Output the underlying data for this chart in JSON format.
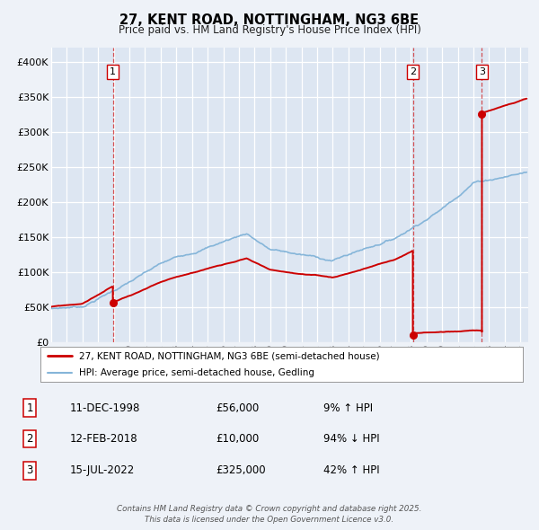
{
  "title": "27, KENT ROAD, NOTTINGHAM, NG3 6BE",
  "subtitle": "Price paid vs. HM Land Registry's House Price Index (HPI)",
  "background_color": "#eef2f8",
  "plot_bg_color": "#dde6f2",
  "grid_color": "#ffffff",
  "red_color": "#cc0000",
  "blue_color": "#85b5d9",
  "ylim": [
    0,
    420000
  ],
  "yticks": [
    0,
    50000,
    100000,
    150000,
    200000,
    250000,
    300000,
    350000,
    400000
  ],
  "ytick_labels": [
    "£0",
    "£50K",
    "£100K",
    "£150K",
    "£200K",
    "£250K",
    "£300K",
    "£350K",
    "£400K"
  ],
  "sale_dates": [
    1998.94,
    2018.12,
    2022.54
  ],
  "sale_prices": [
    56000,
    10000,
    325000
  ],
  "sale_labels": [
    "1",
    "2",
    "3"
  ],
  "legend_red": "27, KENT ROAD, NOTTINGHAM, NG3 6BE (semi-detached house)",
  "legend_blue": "HPI: Average price, semi-detached house, Gedling",
  "table_rows": [
    {
      "num": "1",
      "date": "11-DEC-1998",
      "price": "£56,000",
      "hpi": "9% ↑ HPI"
    },
    {
      "num": "2",
      "date": "12-FEB-2018",
      "price": "£10,000",
      "hpi": "94% ↓ HPI"
    },
    {
      "num": "3",
      "date": "15-JUL-2022",
      "price": "£325,000",
      "hpi": "42% ↑ HPI"
    }
  ],
  "footer": "Contains HM Land Registry data © Crown copyright and database right 2025.\nThis data is licensed under the Open Government Licence v3.0.",
  "xmin": 1995.0,
  "xmax": 2025.5
}
